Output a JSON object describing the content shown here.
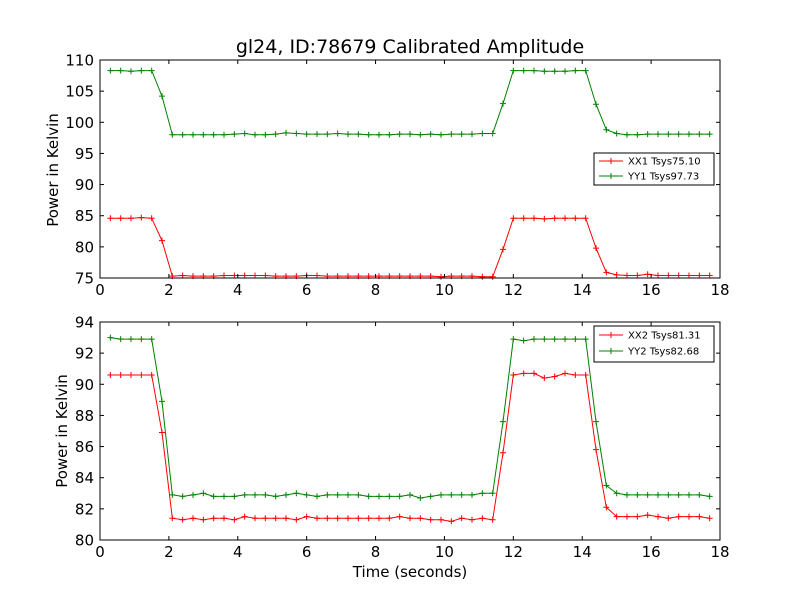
{
  "chart_data": [
    {
      "type": "line",
      "title": "gl24, ID:78679 Calibrated Amplitude",
      "ylabel": "Power in Kelvin",
      "xlabel": "",
      "xlim": [
        0,
        18
      ],
      "ylim": [
        75,
        110
      ],
      "xticks": [
        0,
        2,
        4,
        6,
        8,
        10,
        12,
        14,
        16,
        18
      ],
      "yticks": [
        75,
        80,
        85,
        90,
        95,
        100,
        105,
        110
      ],
      "legend_position": "center-right",
      "grid": false,
      "x": [
        0.3,
        0.6,
        0.9,
        1.2,
        1.5,
        1.8,
        2.1,
        2.4,
        2.7,
        3.0,
        3.3,
        3.6,
        3.9,
        4.2,
        4.5,
        4.8,
        5.1,
        5.4,
        5.7,
        6.0,
        6.3,
        6.6,
        6.9,
        7.2,
        7.5,
        7.8,
        8.1,
        8.4,
        8.7,
        9.0,
        9.3,
        9.6,
        9.9,
        10.2,
        10.5,
        10.8,
        11.1,
        11.4,
        11.7,
        12.0,
        12.3,
        12.6,
        12.9,
        13.2,
        13.5,
        13.8,
        14.1,
        14.4,
        14.7,
        15.0,
        15.3,
        15.6,
        15.9,
        16.2,
        16.5,
        16.8,
        17.1,
        17.4,
        17.7
      ],
      "series": [
        {
          "name": "XX1 Tsys75.10",
          "color": "#ff0000",
          "values": [
            84.6,
            84.6,
            84.6,
            84.7,
            84.6,
            81.0,
            75.3,
            75.4,
            75.3,
            75.3,
            75.3,
            75.4,
            75.4,
            75.4,
            75.4,
            75.4,
            75.3,
            75.3,
            75.3,
            75.4,
            75.4,
            75.3,
            75.3,
            75.3,
            75.3,
            75.3,
            75.3,
            75.3,
            75.3,
            75.3,
            75.3,
            75.3,
            75.2,
            75.3,
            75.3,
            75.3,
            75.2,
            75.2,
            79.6,
            84.6,
            84.6,
            84.6,
            84.5,
            84.6,
            84.6,
            84.6,
            84.6,
            79.8,
            75.9,
            75.5,
            75.4,
            75.4,
            75.6,
            75.4,
            75.4,
            75.4,
            75.4,
            75.4,
            75.4
          ]
        },
        {
          "name": "YY1 Tsys97.73",
          "color": "#008000",
          "values": [
            108.3,
            108.3,
            108.2,
            108.3,
            108.3,
            104.2,
            98.0,
            98.0,
            98.0,
            98.0,
            98.0,
            98.0,
            98.1,
            98.2,
            98.0,
            98.0,
            98.1,
            98.3,
            98.2,
            98.1,
            98.1,
            98.1,
            98.2,
            98.1,
            98.1,
            98.0,
            98.0,
            98.0,
            98.1,
            98.1,
            98.0,
            98.1,
            98.0,
            98.1,
            98.1,
            98.1,
            98.2,
            98.2,
            103.0,
            108.3,
            108.3,
            108.3,
            108.2,
            108.2,
            108.2,
            108.3,
            108.3,
            102.9,
            98.8,
            98.2,
            98.0,
            98.0,
            98.1,
            98.1,
            98.1,
            98.1,
            98.1,
            98.1,
            98.1
          ]
        }
      ]
    },
    {
      "type": "line",
      "title": "",
      "ylabel": "Power in Kelvin",
      "xlabel": "Time (seconds)",
      "xlim": [
        0,
        18
      ],
      "ylim": [
        80,
        94
      ],
      "xticks": [
        0,
        2,
        4,
        6,
        8,
        10,
        12,
        14,
        16,
        18
      ],
      "yticks": [
        80,
        82,
        84,
        86,
        88,
        90,
        92,
        94
      ],
      "legend_position": "top-right",
      "grid": false,
      "x": [
        0.3,
        0.6,
        0.9,
        1.2,
        1.5,
        1.8,
        2.1,
        2.4,
        2.7,
        3.0,
        3.3,
        3.6,
        3.9,
        4.2,
        4.5,
        4.8,
        5.1,
        5.4,
        5.7,
        6.0,
        6.3,
        6.6,
        6.9,
        7.2,
        7.5,
        7.8,
        8.1,
        8.4,
        8.7,
        9.0,
        9.3,
        9.6,
        9.9,
        10.2,
        10.5,
        10.8,
        11.1,
        11.4,
        11.7,
        12.0,
        12.3,
        12.6,
        12.9,
        13.2,
        13.5,
        13.8,
        14.1,
        14.4,
        14.7,
        15.0,
        15.3,
        15.6,
        15.9,
        16.2,
        16.5,
        16.8,
        17.1,
        17.4,
        17.7
      ],
      "series": [
        {
          "name": "XX2 Tsys81.31",
          "color": "#ff0000",
          "values": [
            90.6,
            90.6,
            90.6,
            90.6,
            90.6,
            86.9,
            81.4,
            81.3,
            81.4,
            81.3,
            81.4,
            81.4,
            81.3,
            81.5,
            81.4,
            81.4,
            81.4,
            81.4,
            81.3,
            81.5,
            81.4,
            81.4,
            81.4,
            81.4,
            81.4,
            81.4,
            81.4,
            81.4,
            81.5,
            81.4,
            81.4,
            81.3,
            81.3,
            81.2,
            81.4,
            81.3,
            81.4,
            81.3,
            85.6,
            90.6,
            90.7,
            90.7,
            90.4,
            90.5,
            90.7,
            90.6,
            90.6,
            85.8,
            82.1,
            81.5,
            81.5,
            81.5,
            81.6,
            81.5,
            81.4,
            81.5,
            81.5,
            81.5,
            81.4
          ]
        },
        {
          "name": "YY2 Tsys82.68",
          "color": "#008000",
          "values": [
            93.0,
            92.9,
            92.9,
            92.9,
            92.9,
            88.9,
            82.9,
            82.8,
            82.9,
            83.0,
            82.8,
            82.8,
            82.8,
            82.9,
            82.9,
            82.9,
            82.8,
            82.9,
            83.0,
            82.9,
            82.8,
            82.9,
            82.9,
            82.9,
            82.9,
            82.8,
            82.8,
            82.8,
            82.8,
            82.9,
            82.7,
            82.8,
            82.9,
            82.9,
            82.9,
            82.9,
            83.0,
            83.0,
            87.6,
            92.9,
            92.8,
            92.9,
            92.9,
            92.9,
            92.9,
            92.9,
            92.9,
            87.6,
            83.5,
            83.0,
            82.9,
            82.9,
            82.9,
            82.9,
            82.9,
            82.9,
            82.9,
            82.9,
            82.8
          ]
        }
      ]
    }
  ]
}
